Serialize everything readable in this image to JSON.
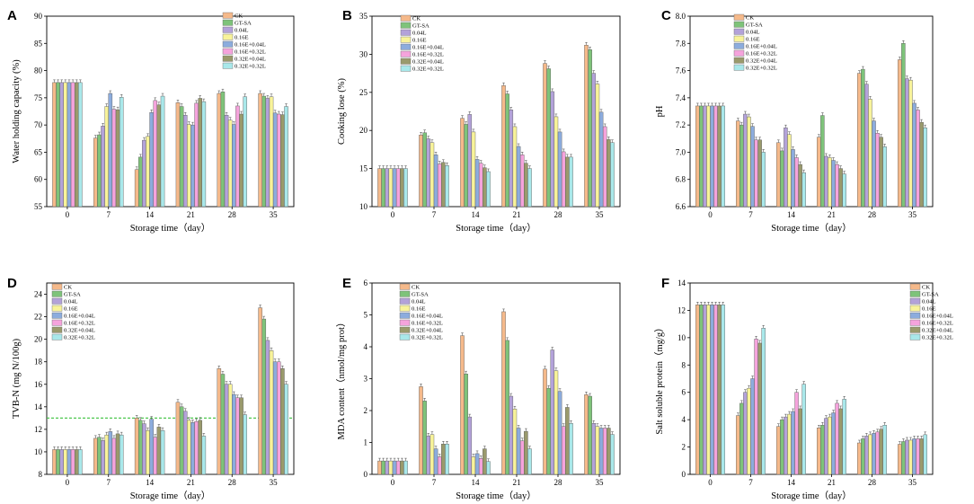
{
  "figure": {
    "categories": [
      "0",
      "7",
      "14",
      "21",
      "28",
      "35"
    ],
    "xlabel": "Storage time（day）",
    "series_names": [
      "CK",
      "GT-SA",
      "0.04L",
      "0.16E",
      "0.16E+0.04L",
      "0.16E+0.32L",
      "0.32E+0.04L",
      "0.32E+0.32L"
    ],
    "colors": [
      "#f5b98a",
      "#7ec37a",
      "#b3a2d9",
      "#f8f39a",
      "#8cacdd",
      "#f5a3dc",
      "#9a9a6c",
      "#a9e8ea"
    ]
  },
  "chart_data": [
    {
      "panel": "A",
      "type": "bar",
      "title": "",
      "xlabel": "Storage time（day）",
      "ylabel": "Water holding capacity (%)",
      "ylim": [
        55,
        90
      ],
      "yticks": [
        "55",
        "60",
        "65",
        "70",
        "75",
        "80",
        "85",
        "90"
      ],
      "categories": [
        "0",
        "7",
        "14",
        "21",
        "28",
        "35"
      ],
      "series": [
        {
          "name": "CK",
          "values": [
            77.8,
            67.6,
            61.8,
            74.1,
            75.8,
            75.8
          ]
        },
        {
          "name": "GT-SA",
          "values": [
            77.8,
            68.2,
            64.1,
            73.4,
            76.1,
            75.3
          ]
        },
        {
          "name": "0.04L",
          "values": [
            77.8,
            69.8,
            67.2,
            71.8,
            71.8,
            74.9
          ]
        },
        {
          "name": "0.16E",
          "values": [
            77.8,
            73.4,
            67.9,
            70.1,
            70.9,
            75.2
          ]
        },
        {
          "name": "0.16E+0.04L",
          "values": [
            77.8,
            75.8,
            72.3,
            70.0,
            70.1,
            72.2
          ]
        },
        {
          "name": "0.16E+0.32L",
          "values": [
            77.8,
            72.9,
            74.5,
            74.0,
            73.5,
            72.0
          ]
        },
        {
          "name": "0.32E+0.04L",
          "values": [
            77.8,
            72.8,
            73.7,
            74.9,
            72.0,
            71.9
          ]
        },
        {
          "name": "0.32E+0.32L",
          "values": [
            77.8,
            75.1,
            75.3,
            74.3,
            75.2,
            73.4
          ]
        }
      ]
    },
    {
      "panel": "B",
      "type": "bar",
      "title": "",
      "xlabel": "Storage time（day）",
      "ylabel": "Cooking lose (%)",
      "ylim": [
        10,
        35
      ],
      "yticks": [
        "10",
        "15",
        "20",
        "25",
        "30",
        "35"
      ],
      "categories": [
        "0",
        "7",
        "14",
        "21",
        "28",
        "35"
      ],
      "series": [
        {
          "name": "CK",
          "values": [
            15,
            19.4,
            21.6,
            25.9,
            28.8,
            31.2
          ]
        },
        {
          "name": "GT-SA",
          "values": [
            15,
            19.7,
            20.8,
            24.8,
            28.1,
            30.6
          ]
        },
        {
          "name": "0.04L",
          "values": [
            15,
            18.9,
            22.1,
            22.7,
            25.1,
            27.5
          ]
        },
        {
          "name": "0.16E",
          "values": [
            15,
            18.4,
            19.8,
            20.5,
            21.8,
            26.1
          ]
        },
        {
          "name": "0.16E+0.04L",
          "values": [
            15,
            16.8,
            16.2,
            17.9,
            19.8,
            22.4
          ]
        },
        {
          "name": "0.16E+0.32L",
          "values": [
            15,
            15.6,
            15.7,
            16.8,
            17.2,
            20.5
          ]
        },
        {
          "name": "0.32E+0.04L",
          "values": [
            15,
            15.8,
            15.1,
            15.7,
            16.5,
            18.8
          ]
        },
        {
          "name": "0.32E+0.32L",
          "values": [
            15,
            15.4,
            14.6,
            15.0,
            16.5,
            18.4
          ]
        }
      ]
    },
    {
      "panel": "C",
      "type": "bar",
      "title": "",
      "xlabel": "Storage time（day）",
      "ylabel": "pH",
      "ylim": [
        6.6,
        8.0
      ],
      "yticks": [
        "6.6",
        "6.8",
        "7.0",
        "7.2",
        "7.4",
        "7.6",
        "7.8",
        "8.0"
      ],
      "categories": [
        "0",
        "7",
        "14",
        "21",
        "28",
        "35"
      ],
      "series": [
        {
          "name": "CK",
          "values": [
            7.34,
            7.23,
            7.07,
            7.11,
            7.58,
            7.68
          ]
        },
        {
          "name": "GT-SA",
          "values": [
            7.34,
            7.2,
            7.01,
            7.27,
            7.61,
            7.8
          ]
        },
        {
          "name": "0.04L",
          "values": [
            7.34,
            7.28,
            7.18,
            6.97,
            7.5,
            7.54
          ]
        },
        {
          "name": "0.16E",
          "values": [
            7.34,
            7.26,
            7.13,
            6.96,
            7.39,
            7.53
          ]
        },
        {
          "name": "0.16E+0.04L",
          "values": [
            7.34,
            7.19,
            7.02,
            6.94,
            7.23,
            7.36
          ]
        },
        {
          "name": "0.16E+0.32L",
          "values": [
            7.34,
            7.09,
            6.96,
            6.91,
            7.14,
            7.31
          ]
        },
        {
          "name": "0.32E+0.04L",
          "values": [
            7.34,
            7.09,
            6.91,
            6.88,
            7.11,
            7.22
          ]
        },
        {
          "name": "0.32E+0.32L",
          "values": [
            7.34,
            7.0,
            6.85,
            6.84,
            7.04,
            7.18
          ]
        }
      ]
    },
    {
      "panel": "D",
      "type": "bar",
      "title": "",
      "xlabel": "Storage time（day）",
      "ylabel": "TVB-N (mg N/100g)",
      "ylim": [
        8,
        25
      ],
      "yticks": [
        "8",
        "10",
        "12",
        "14",
        "16",
        "18",
        "20",
        "22",
        "24"
      ],
      "reference_line": 13,
      "categories": [
        "0",
        "7",
        "14",
        "21",
        "28",
        "35"
      ],
      "series": [
        {
          "name": "CK",
          "values": [
            10.2,
            11.2,
            13.0,
            14.4,
            17.4,
            22.8
          ]
        },
        {
          "name": "GT-SA",
          "values": [
            10.2,
            11.3,
            12.8,
            14.0,
            16.9,
            21.8
          ]
        },
        {
          "name": "0.04L",
          "values": [
            10.2,
            11.0,
            12.5,
            13.6,
            16.0,
            19.9
          ]
        },
        {
          "name": "0.16E",
          "values": [
            10.2,
            11.5,
            11.9,
            12.8,
            16.0,
            19.0
          ]
        },
        {
          "name": "0.16E+0.04L",
          "values": [
            10.2,
            11.8,
            12.9,
            12.6,
            15.1,
            18.0
          ]
        },
        {
          "name": "0.16E+0.32L",
          "values": [
            10.2,
            11.2,
            11.3,
            12.7,
            14.8,
            18.0
          ]
        },
        {
          "name": "0.32E+0.04L",
          "values": [
            10.2,
            11.6,
            12.2,
            12.8,
            14.8,
            17.4
          ]
        },
        {
          "name": "0.32E+0.32L",
          "values": [
            10.2,
            11.5,
            11.9,
            11.4,
            13.3,
            16.0
          ]
        }
      ]
    },
    {
      "panel": "E",
      "type": "bar",
      "title": "",
      "xlabel": "Storage time（day）",
      "ylabel": "MDA content（nmol/mg prot）",
      "ylim": [
        0,
        6
      ],
      "yticks": [
        "0",
        "1",
        "2",
        "3",
        "4",
        "5",
        "6"
      ],
      "categories": [
        "0",
        "7",
        "14",
        "21",
        "28",
        "35"
      ],
      "series": [
        {
          "name": "CK",
          "values": [
            0.42,
            2.75,
            4.35,
            5.1,
            3.3,
            2.5
          ]
        },
        {
          "name": "GT-SA",
          "values": [
            0.42,
            2.3,
            3.15,
            4.2,
            2.7,
            2.45
          ]
        },
        {
          "name": "0.04L",
          "values": [
            0.42,
            1.2,
            1.8,
            2.45,
            3.9,
            1.6
          ]
        },
        {
          "name": "0.16E",
          "values": [
            0.42,
            1.25,
            0.55,
            2.05,
            3.25,
            1.5
          ]
        },
        {
          "name": "0.16E+0.04L",
          "values": [
            0.42,
            0.8,
            0.65,
            1.45,
            2.6,
            1.45
          ]
        },
        {
          "name": "0.16E+0.32L",
          "values": [
            0.42,
            0.55,
            0.5,
            1.05,
            1.5,
            1.45
          ]
        },
        {
          "name": "0.32E+0.04L",
          "values": [
            0.42,
            0.95,
            0.8,
            1.35,
            2.1,
            1.45
          ]
        },
        {
          "name": "0.32E+0.32L",
          "values": [
            0.42,
            0.95,
            0.4,
            0.8,
            1.6,
            1.25
          ]
        }
      ]
    },
    {
      "panel": "F",
      "type": "bar",
      "title": "",
      "xlabel": "Storage time（day）",
      "ylabel": "Salt soluble protein（mg/g）",
      "ylim": [
        0,
        14
      ],
      "yticks": [
        "0",
        "2",
        "4",
        "6",
        "8",
        "10",
        "12",
        "14"
      ],
      "categories": [
        "0",
        "7",
        "14",
        "21",
        "28",
        "35"
      ],
      "series": [
        {
          "name": "CK",
          "values": [
            12.4,
            4.3,
            3.5,
            3.4,
            2.3,
            2.2
          ]
        },
        {
          "name": "GT-SA",
          "values": [
            12.4,
            5.2,
            4.0,
            3.6,
            2.6,
            2.4
          ]
        },
        {
          "name": "0.04L",
          "values": [
            12.4,
            6.0,
            4.2,
            4.1,
            2.8,
            2.5
          ]
        },
        {
          "name": "0.16E",
          "values": [
            12.4,
            6.3,
            4.4,
            4.2,
            2.9,
            2.5
          ]
        },
        {
          "name": "0.16E+0.04L",
          "values": [
            12.4,
            7.0,
            4.6,
            4.5,
            3.0,
            2.6
          ]
        },
        {
          "name": "0.16E+0.32L",
          "values": [
            12.4,
            9.9,
            6.0,
            5.2,
            3.1,
            2.6
          ]
        },
        {
          "name": "0.32E+0.04L",
          "values": [
            12.4,
            9.6,
            4.8,
            4.8,
            3.3,
            2.6
          ]
        },
        {
          "name": "0.32E+0.32L",
          "values": [
            12.4,
            10.7,
            6.6,
            5.5,
            3.6,
            2.9
          ]
        }
      ]
    }
  ]
}
